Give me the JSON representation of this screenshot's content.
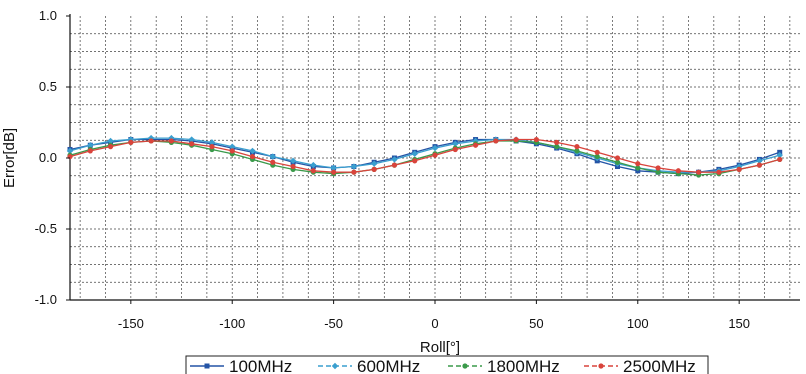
{
  "chart_data": {
    "type": "line",
    "xlabel": "Roll[°]",
    "ylabel": "Error[dB]",
    "xlim": [
      -180,
      180
    ],
    "ylim": [
      -1.0,
      1.0
    ],
    "grid": true,
    "legend_position": "bottom",
    "x_ticks": [
      -150,
      -100,
      -50,
      0,
      50,
      100,
      150
    ],
    "x_tick_labels": [
      "-150",
      "-100",
      "-50",
      "0",
      "50",
      "100",
      "150"
    ],
    "y_ticks": [
      1.0,
      0.5,
      0.0,
      -0.5,
      -1.0
    ],
    "y_tick_labels": [
      "1.0",
      "0.5",
      "0.0",
      "-0.5",
      "-1.0"
    ],
    "x": [
      -180,
      -170,
      -160,
      -150,
      -140,
      -130,
      -120,
      -110,
      -100,
      -90,
      -80,
      -70,
      -60,
      -50,
      -40,
      -30,
      -20,
      -10,
      0,
      10,
      20,
      30,
      40,
      50,
      60,
      70,
      80,
      90,
      100,
      110,
      120,
      130,
      140,
      150,
      160,
      170
    ],
    "series": [
      {
        "name": "100MHz",
        "color": "#2454a6",
        "marker": "square",
        "values": [
          0.06,
          0.09,
          0.11,
          0.13,
          0.13,
          0.13,
          0.12,
          0.1,
          0.07,
          0.04,
          0.01,
          -0.03,
          -0.06,
          -0.07,
          -0.06,
          -0.03,
          0.0,
          0.04,
          0.08,
          0.11,
          0.13,
          0.13,
          0.12,
          0.1,
          0.07,
          0.03,
          -0.02,
          -0.06,
          -0.09,
          -0.1,
          -0.11,
          -0.1,
          -0.08,
          -0.05,
          -0.01,
          0.04
        ]
      },
      {
        "name": "600MHz",
        "color": "#3a9fcf",
        "marker": "diamond",
        "values": [
          0.05,
          0.09,
          0.12,
          0.13,
          0.14,
          0.14,
          0.13,
          0.11,
          0.08,
          0.05,
          0.01,
          -0.02,
          -0.05,
          -0.07,
          -0.06,
          -0.04,
          -0.01,
          0.03,
          0.07,
          0.1,
          0.12,
          0.13,
          0.13,
          0.11,
          0.08,
          0.04,
          0.0,
          -0.04,
          -0.07,
          -0.09,
          -0.1,
          -0.1,
          -0.09,
          -0.06,
          -0.02,
          0.02
        ]
      },
      {
        "name": "1800MHz",
        "color": "#3a9a4a",
        "marker": "circle",
        "values": [
          0.02,
          0.06,
          0.09,
          0.11,
          0.12,
          0.11,
          0.09,
          0.06,
          0.03,
          -0.01,
          -0.05,
          -0.08,
          -0.1,
          -0.11,
          -0.1,
          -0.08,
          -0.05,
          -0.01,
          0.03,
          0.07,
          0.1,
          0.12,
          0.12,
          0.11,
          0.08,
          0.05,
          0.01,
          -0.03,
          -0.07,
          -0.1,
          -0.11,
          -0.12,
          -0.11,
          -0.08,
          -0.05,
          -0.01
        ]
      },
      {
        "name": "2500MHz",
        "color": "#d9443c",
        "marker": "circle",
        "values": [
          0.01,
          0.05,
          0.08,
          0.11,
          0.12,
          0.12,
          0.1,
          0.08,
          0.05,
          0.01,
          -0.03,
          -0.06,
          -0.09,
          -0.1,
          -0.1,
          -0.08,
          -0.05,
          -0.02,
          0.02,
          0.06,
          0.09,
          0.12,
          0.13,
          0.13,
          0.11,
          0.08,
          0.04,
          0.0,
          -0.04,
          -0.07,
          -0.09,
          -0.1,
          -0.1,
          -0.08,
          -0.05,
          -0.01
        ]
      }
    ]
  }
}
